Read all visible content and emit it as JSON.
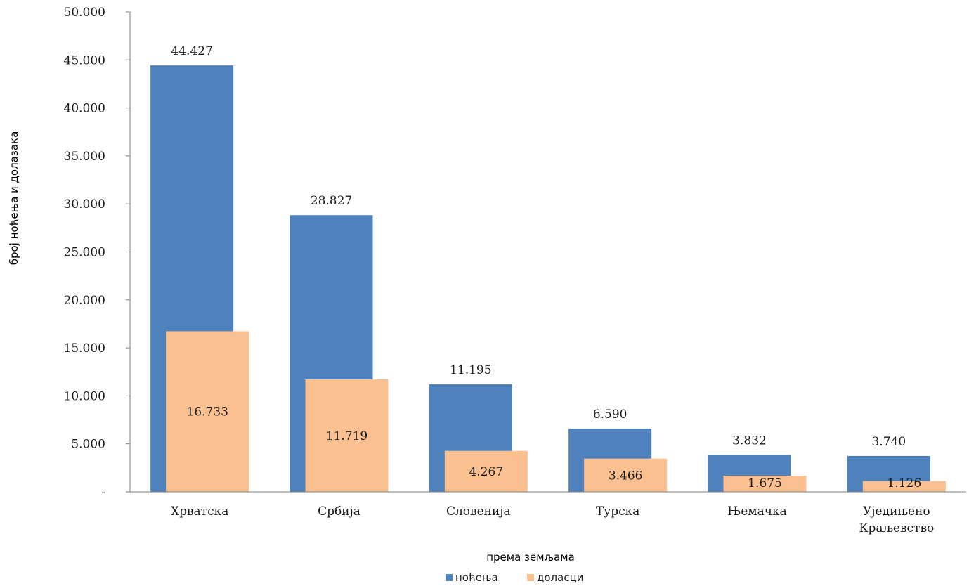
{
  "chart_data": {
    "type": "bar",
    "categories": [
      [
        "Хрватска"
      ],
      [
        "Србија"
      ],
      [
        "Словенија"
      ],
      [
        "Турска"
      ],
      [
        "Њемачка"
      ],
      [
        "Уједињено",
        "Краљевство"
      ]
    ],
    "series": [
      {
        "name": "ноћења",
        "color": "#4f81bd",
        "values": [
          44427,
          28827,
          11195,
          6590,
          3832,
          3740
        ],
        "labels": [
          "44.427",
          "28.827",
          "11.195",
          "6.590",
          "3.832",
          "3.740"
        ]
      },
      {
        "name": "доласци",
        "color": "#fac090",
        "values": [
          16733,
          11719,
          4267,
          3466,
          1675,
          1126
        ],
        "labels": [
          "16.733",
          "11.719",
          "4.267",
          "3.466",
          "1.675",
          "1.126"
        ]
      }
    ],
    "ylim": [
      0,
      50000
    ],
    "yticks": [
      {
        "value": 0,
        "label": "-"
      },
      {
        "value": 5000,
        "label": "5.000"
      },
      {
        "value": 10000,
        "label": "10.000"
      },
      {
        "value": 15000,
        "label": "15.000"
      },
      {
        "value": 20000,
        "label": "20.000"
      },
      {
        "value": 25000,
        "label": "25.000"
      },
      {
        "value": 30000,
        "label": "30.000"
      },
      {
        "value": 35000,
        "label": "35.000"
      },
      {
        "value": 40000,
        "label": "40.000"
      },
      {
        "value": 45000,
        "label": "45.000"
      },
      {
        "value": 50000,
        "label": "50.000"
      }
    ],
    "xlabel": "према земљама",
    "ylabel": "број ноћења и долазака",
    "grid": false,
    "legend": "bottom-center",
    "bar_style": "overlapping"
  }
}
